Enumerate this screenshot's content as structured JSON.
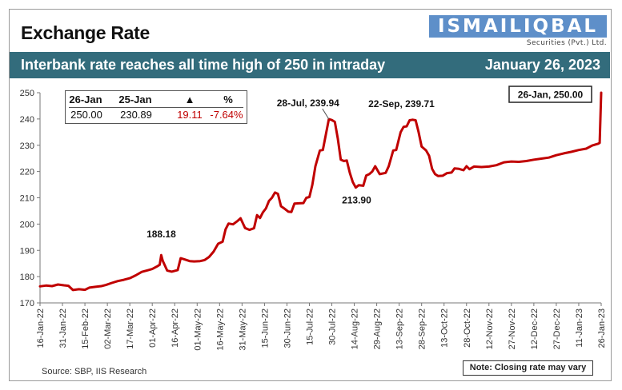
{
  "header": {
    "title": "Exchange Rate",
    "logo_text": "ISMAILIQBAL",
    "logo_sub": "Securities (Pvt.) Ltd.",
    "banner_text": "Interbank rate reaches all time high of 250 in intraday",
    "banner_date": "January 26, 2023"
  },
  "infobox": {
    "headers": [
      "26-Jan",
      "25-Jan",
      "▲",
      "%"
    ],
    "values": [
      "250.00",
      "230.89",
      "19.11",
      "-7.64%"
    ]
  },
  "footer": {
    "source": "Source: SBP, IIS Research",
    "note": "Note: Closing rate may vary"
  },
  "colors": {
    "line": "#c00000",
    "banner": "#336c7c",
    "logo": "#5e8fc9"
  },
  "chart_data": {
    "type": "line",
    "title": "Exchange Rate",
    "ylim": [
      170,
      250
    ],
    "yticks": [
      170,
      180,
      190,
      200,
      210,
      220,
      230,
      240,
      250
    ],
    "xlim": [
      "2022-01-16",
      "2023-01-26"
    ],
    "xtick_labels": [
      "16-Jan-22",
      "31-Jan-22",
      "15-Feb-22",
      "02-Mar-22",
      "17-Mar-22",
      "01-Apr-22",
      "16-Apr-22",
      "01-May-22",
      "16-May-22",
      "31-May-22",
      "15-Jun-22",
      "30-Jun-22",
      "15-Jul-22",
      "30-Jul-22",
      "14-Aug-22",
      "29-Aug-22",
      "13-Sep-22",
      "28-Sep-22",
      "13-Oct-22",
      "28-Oct-22",
      "12-Nov-22",
      "27-Nov-22",
      "12-Dec-22",
      "27-Dec-22",
      "11-Jan-23",
      "26-Jan-23"
    ],
    "grid": false,
    "series": [
      {
        "points": [
          [
            "2022-01-16",
            176.3
          ],
          [
            "2022-01-20",
            176.6
          ],
          [
            "2022-01-24",
            176.4
          ],
          [
            "2022-01-28",
            177.0
          ],
          [
            "2022-02-01",
            176.7
          ],
          [
            "2022-02-04",
            176.5
          ],
          [
            "2022-02-07",
            174.9
          ],
          [
            "2022-02-11",
            175.2
          ],
          [
            "2022-02-15",
            175.0
          ],
          [
            "2022-02-18",
            175.8
          ],
          [
            "2022-02-22",
            176.1
          ],
          [
            "2022-02-26",
            176.4
          ],
          [
            "2022-03-01",
            176.8
          ],
          [
            "2022-03-05",
            177.6
          ],
          [
            "2022-03-09",
            178.3
          ],
          [
            "2022-03-13",
            178.8
          ],
          [
            "2022-03-17",
            179.4
          ],
          [
            "2022-03-21",
            180.5
          ],
          [
            "2022-03-25",
            181.8
          ],
          [
            "2022-03-29",
            182.4
          ],
          [
            "2022-04-01",
            182.9
          ],
          [
            "2022-04-04",
            183.8
          ],
          [
            "2022-04-06",
            184.5
          ],
          [
            "2022-04-07",
            188.18
          ],
          [
            "2022-04-08",
            186.0
          ],
          [
            "2022-04-11",
            182.3
          ],
          [
            "2022-04-14",
            181.9
          ],
          [
            "2022-04-18",
            182.5
          ],
          [
            "2022-04-20",
            187.0
          ],
          [
            "2022-04-23",
            186.5
          ],
          [
            "2022-04-26",
            185.9
          ],
          [
            "2022-04-29",
            185.8
          ],
          [
            "2022-05-03",
            185.9
          ],
          [
            "2022-05-06",
            186.3
          ],
          [
            "2022-05-09",
            187.5
          ],
          [
            "2022-05-12",
            189.5
          ],
          [
            "2022-05-15",
            192.5
          ],
          [
            "2022-05-18",
            193.3
          ],
          [
            "2022-05-20",
            198.0
          ],
          [
            "2022-05-22",
            200.2
          ],
          [
            "2022-05-25",
            199.9
          ],
          [
            "2022-05-28",
            201.2
          ],
          [
            "2022-05-30",
            202.2
          ],
          [
            "2022-06-02",
            198.5
          ],
          [
            "2022-06-05",
            197.8
          ],
          [
            "2022-06-08",
            198.4
          ],
          [
            "2022-06-10",
            203.4
          ],
          [
            "2022-06-12",
            202.3
          ],
          [
            "2022-06-14",
            204.5
          ],
          [
            "2022-06-16",
            206.0
          ],
          [
            "2022-06-18",
            208.8
          ],
          [
            "2022-06-20",
            210.0
          ],
          [
            "2022-06-22",
            212.0
          ],
          [
            "2022-06-24",
            211.5
          ],
          [
            "2022-06-26",
            206.8
          ],
          [
            "2022-06-28",
            206.0
          ],
          [
            "2022-07-01",
            204.7
          ],
          [
            "2022-07-03",
            204.6
          ],
          [
            "2022-07-05",
            207.8
          ],
          [
            "2022-07-08",
            207.9
          ],
          [
            "2022-07-11",
            208.0
          ],
          [
            "2022-07-13",
            210.0
          ],
          [
            "2022-07-15",
            210.3
          ],
          [
            "2022-07-17",
            215.0
          ],
          [
            "2022-07-19",
            222.0
          ],
          [
            "2022-07-21",
            226.0
          ],
          [
            "2022-07-22",
            228.0
          ],
          [
            "2022-07-24",
            228.2
          ],
          [
            "2022-07-26",
            234.0
          ],
          [
            "2022-07-28",
            239.94
          ],
          [
            "2022-07-30",
            239.6
          ],
          [
            "2022-08-01",
            238.9
          ],
          [
            "2022-08-03",
            232.5
          ],
          [
            "2022-08-05",
            224.5
          ],
          [
            "2022-08-07",
            224.0
          ],
          [
            "2022-08-09",
            224.2
          ],
          [
            "2022-08-11",
            219.5
          ],
          [
            "2022-08-13",
            216.0
          ],
          [
            "2022-08-15",
            213.9
          ],
          [
            "2022-08-17",
            214.8
          ],
          [
            "2022-08-20",
            214.6
          ],
          [
            "2022-08-22",
            218.5
          ],
          [
            "2022-08-24",
            219.0
          ],
          [
            "2022-08-26",
            220.0
          ],
          [
            "2022-08-28",
            222.0
          ],
          [
            "2022-08-31",
            219.0
          ],
          [
            "2022-09-04",
            219.5
          ],
          [
            "2022-09-06",
            222.0
          ],
          [
            "2022-09-09",
            228.0
          ],
          [
            "2022-09-11",
            228.2
          ],
          [
            "2022-09-14",
            235.0
          ],
          [
            "2022-09-16",
            237.0
          ],
          [
            "2022-09-18",
            237.2
          ],
          [
            "2022-09-20",
            239.5
          ],
          [
            "2022-09-22",
            239.71
          ],
          [
            "2022-09-24",
            239.5
          ],
          [
            "2022-09-26",
            235.0
          ],
          [
            "2022-09-28",
            229.5
          ],
          [
            "2022-10-01",
            228.0
          ],
          [
            "2022-10-03",
            226.0
          ],
          [
            "2022-10-05",
            221.0
          ],
          [
            "2022-10-07",
            219.0
          ],
          [
            "2022-10-09",
            218.3
          ],
          [
            "2022-10-12",
            218.4
          ],
          [
            "2022-10-15",
            219.4
          ],
          [
            "2022-10-18",
            219.6
          ],
          [
            "2022-10-20",
            221.2
          ],
          [
            "2022-10-23",
            221.0
          ],
          [
            "2022-10-26",
            220.5
          ],
          [
            "2022-10-28",
            222.0
          ],
          [
            "2022-10-30",
            220.9
          ],
          [
            "2022-11-02",
            221.9
          ],
          [
            "2022-11-07",
            221.7
          ],
          [
            "2022-11-12",
            221.9
          ],
          [
            "2022-11-17",
            222.4
          ],
          [
            "2022-11-22",
            223.5
          ],
          [
            "2022-11-27",
            223.8
          ],
          [
            "2022-12-02",
            223.7
          ],
          [
            "2022-12-07",
            224.0
          ],
          [
            "2022-12-12",
            224.5
          ],
          [
            "2022-12-17",
            224.9
          ],
          [
            "2022-12-22",
            225.3
          ],
          [
            "2022-12-27",
            226.2
          ],
          [
            "2023-01-01",
            226.9
          ],
          [
            "2023-01-06",
            227.5
          ],
          [
            "2023-01-11",
            228.2
          ],
          [
            "2023-01-16",
            228.7
          ],
          [
            "2023-01-20",
            229.9
          ],
          [
            "2023-01-24",
            230.6
          ],
          [
            "2023-01-25",
            230.89
          ],
          [
            "2023-01-26",
            250.0
          ]
        ]
      }
    ],
    "annotations": [
      {
        "text": "188.18",
        "x": "2022-04-07",
        "y": 188.18
      },
      {
        "text": "28-Jul, 239.94",
        "x": "2022-07-28",
        "y": 239.94
      },
      {
        "text": "213.90",
        "x": "2022-08-15",
        "y": 213.9
      },
      {
        "text": "22-Sep, 239.71",
        "x": "2022-09-22",
        "y": 239.71
      },
      {
        "text": "26-Jan, 250.00",
        "x": "2023-01-26",
        "y": 250.0
      }
    ]
  }
}
